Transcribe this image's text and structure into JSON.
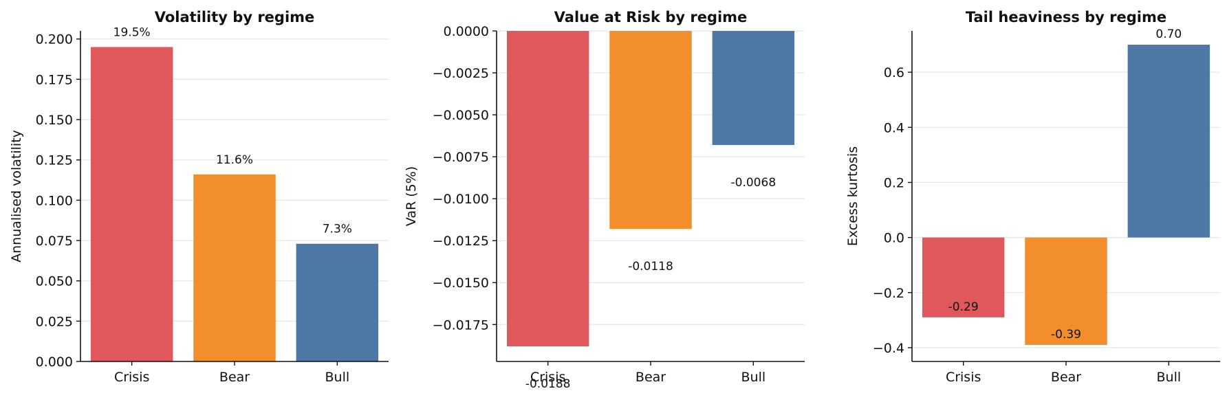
{
  "chart_data": [
    {
      "type": "bar",
      "title": "Volatility by regime",
      "xlabel": "",
      "ylabel": "Annualised volatility",
      "categories": [
        "Crisis",
        "Bear",
        "Bull"
      ],
      "values": [
        0.195,
        0.116,
        0.073
      ],
      "labels": [
        "19.5%",
        "11.6%",
        "7.3%"
      ],
      "colors": [
        "#e0585b",
        "#f28e2b",
        "#4e79a7"
      ],
      "ylim": [
        0,
        0.205
      ],
      "yticks": [
        0.0,
        0.025,
        0.05,
        0.075,
        0.1,
        0.125,
        0.15,
        0.175,
        0.2
      ],
      "ytick_labels": [
        "0.000",
        "0.025",
        "0.050",
        "0.075",
        "0.100",
        "0.125",
        "0.150",
        "0.175",
        "0.200"
      ],
      "grid": true,
      "legend": "none"
    },
    {
      "type": "bar",
      "title": "Value at Risk by regime",
      "xlabel": "",
      "ylabel": "VaR (5%)",
      "categories": [
        "Crisis",
        "Bear",
        "Bull"
      ],
      "values": [
        -0.0188,
        -0.0118,
        -0.0068
      ],
      "labels": [
        "-0.0188",
        "-0.0118",
        "-0.0068"
      ],
      "colors": [
        "#e0585b",
        "#f28e2b",
        "#4e79a7"
      ],
      "ylim": [
        -0.0197,
        0.0
      ],
      "yticks": [
        0.0,
        -0.0025,
        -0.005,
        -0.0075,
        -0.01,
        -0.0125,
        -0.015,
        -0.0175
      ],
      "ytick_labels": [
        "0.0000",
        "−0.0025",
        "−0.0050",
        "−0.0075",
        "−0.0100",
        "−0.0125",
        "−0.0150",
        "−0.0175"
      ],
      "grid": true,
      "legend": "none"
    },
    {
      "type": "bar",
      "title": "Tail heaviness by regime",
      "xlabel": "",
      "ylabel": "Excess kurtosis",
      "categories": [
        "Crisis",
        "Bear",
        "Bull"
      ],
      "values": [
        -0.29,
        -0.39,
        0.7
      ],
      "labels": [
        "-0.29",
        "-0.39",
        "0.70"
      ],
      "colors": [
        "#e0585b",
        "#f28e2b",
        "#4e79a7"
      ],
      "ylim": [
        -0.45,
        0.75
      ],
      "yticks": [
        -0.4,
        -0.2,
        0.0,
        0.2,
        0.4,
        0.6
      ],
      "ytick_labels": [
        "−0.4",
        "−0.2",
        "0.0",
        "0.2",
        "0.4",
        "0.6"
      ],
      "grid": true,
      "legend": "none"
    }
  ]
}
